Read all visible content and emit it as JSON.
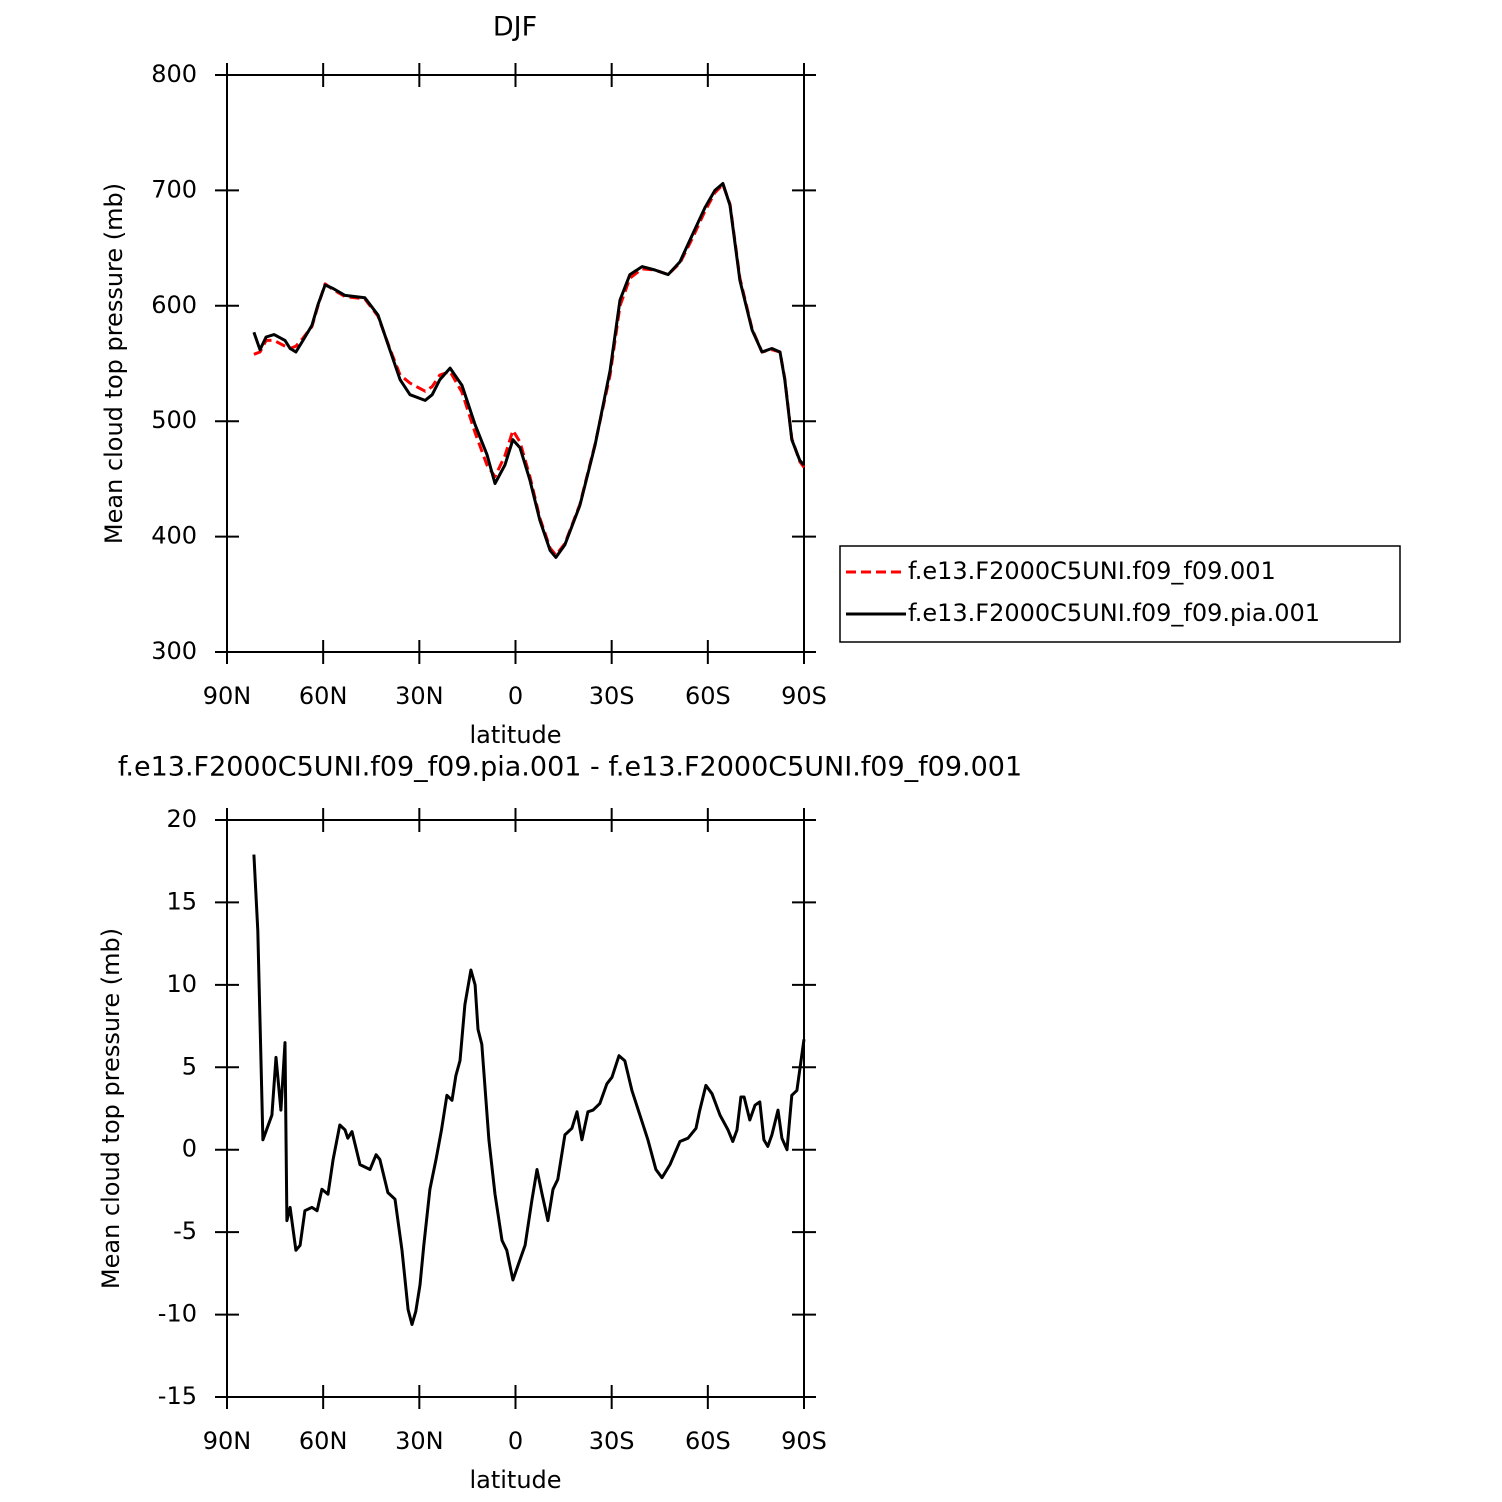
{
  "chart_data": [
    {
      "type": "line",
      "title": "DJF",
      "xlabel": "latitude",
      "ylabel": "Mean cloud top pressure (mb)",
      "xlim": [
        90,
        -90
      ],
      "xticks": [
        {
          "value": 90,
          "label": "90N"
        },
        {
          "value": 60,
          "label": "60N"
        },
        {
          "value": 30,
          "label": "30N"
        },
        0,
        {
          "value": -30,
          "label": "30S"
        },
        {
          "value": -60,
          "label": "60S"
        },
        {
          "value": -90,
          "label": "90S"
        }
      ],
      "ylim": [
        300,
        800
      ],
      "yticks": [
        300,
        400,
        500,
        600,
        700,
        800
      ],
      "legend": "right",
      "x": [
        81.6,
        79.7,
        77.8,
        75.3,
        71.9,
        70.3,
        68.5,
        66.3,
        63.5,
        61.6,
        59.4,
        56.9,
        53.2,
        47,
        42.9,
        39.2,
        36,
        32.9,
        28.2,
        26,
        23.6,
        20.4,
        16.7,
        12.6,
        8.9,
        6.4,
        3.3,
        0.8,
        -1.4,
        -4.5,
        -7.6,
        -10.8,
        -12.6,
        -15.4,
        -20.1,
        -24.8,
        -29.5,
        -32.6,
        -35.7,
        -39.5,
        -43.5,
        -47.6,
        -51.3,
        -55.1,
        -59.1,
        -62.2,
        -64.7,
        -66.9,
        -70,
        -73.8,
        -76.9,
        -80,
        -82.5,
        -84,
        -86.2,
        -88.7,
        -90
      ],
      "series": [
        {
          "name": "f.e13.F2000C5UNI.f09_f09.001",
          "color": "#ff0000",
          "dashed": true,
          "values": [
            558,
            560,
            570,
            570,
            565,
            563,
            565,
            572,
            582,
            600,
            619,
            614,
            608,
            606,
            591,
            563,
            540,
            533,
            526,
            530,
            540,
            543,
            525,
            490,
            462,
            452,
            470,
            492,
            482,
            452,
            416,
            390,
            384,
            394,
            428,
            480,
            540,
            600,
            624,
            632,
            631,
            627,
            637,
            658,
            682,
            698,
            705,
            688,
            624,
            580,
            560,
            562,
            560,
            537,
            485,
            465,
            460
          ]
        },
        {
          "name": "f.e13.F2000C5UNI.f09_f09.pia.001",
          "color": "#000000",
          "dashed": false,
          "values": [
            577,
            562,
            573,
            575,
            570,
            563,
            560,
            570,
            583,
            601,
            618,
            615,
            609,
            607,
            592,
            562,
            536,
            523,
            518,
            523,
            536,
            546,
            531,
            497,
            471,
            446,
            462,
            484,
            477,
            449,
            414,
            388,
            382,
            393,
            427,
            479,
            544,
            605,
            627,
            634,
            631,
            627,
            638,
            661,
            685,
            700,
            706,
            687,
            622,
            579,
            560,
            563,
            560,
            536,
            484,
            466,
            462
          ]
        }
      ]
    },
    {
      "type": "line",
      "title": "f.e13.F2000C5UNI.f09_f09.pia.001 - f.e13.F2000C5UNI.f09_f09.001",
      "xlabel": "latitude",
      "ylabel": "Mean cloud top pressure (mb)",
      "xlim": [
        90,
        -90
      ],
      "xticks": [
        {
          "value": 90,
          "label": "90N"
        },
        {
          "value": 60,
          "label": "60N"
        },
        {
          "value": 30,
          "label": "30N"
        },
        0,
        {
          "value": -30,
          "label": "30S"
        },
        {
          "value": -60,
          "label": "60S"
        },
        {
          "value": -90,
          "label": "90S"
        }
      ],
      "ylim": [
        -15,
        20
      ],
      "yticks": [
        -15,
        -10,
        -5,
        0,
        5,
        10,
        15,
        20
      ],
      "x": [
        81.6,
        80.4,
        78.8,
        76,
        74.7,
        73.2,
        71.9,
        71.3,
        70.3,
        68.5,
        67.2,
        65.7,
        63.5,
        61.9,
        60.4,
        58.5,
        56.9,
        54.8,
        53.2,
        52.3,
        51,
        48.5,
        45.4,
        43.5,
        42.3,
        39.8,
        37.6,
        35.4,
        33.5,
        32.3,
        31.1,
        29.8,
        28.6,
        26.7,
        24.8,
        23.1,
        21.4,
        19.8,
        18.6,
        17.3,
        15.8,
        13.9,
        12.6,
        11.7,
        10.5,
        8.3,
        6.4,
        4.2,
        2.7,
        0.8,
        -0.8,
        -3,
        -5.1,
        -6.7,
        -8.3,
        -10.1,
        -11.7,
        -13.2,
        -15.4,
        -17.6,
        -19.2,
        -20.7,
        -22.6,
        -24.2,
        -26.3,
        -28.5,
        -30.1,
        -32.3,
        -34.1,
        -36.3,
        -38.8,
        -41.3,
        -43.8,
        -45.7,
        -48.2,
        -51.3,
        -53.8,
        -56.3,
        -57.5,
        -59.4,
        -61.3,
        -63.8,
        -66.3,
        -67.8,
        -69.1,
        -70.3,
        -71.3,
        -73.1,
        -74.7,
        -76.2,
        -77.5,
        -78.7,
        -80,
        -81.9,
        -83.1,
        -84.7,
        -86.2,
        -87.8,
        -90
      ],
      "series": [
        {
          "color": "#000000",
          "dashed": false,
          "values": [
            17.9,
            13.3,
            0.6,
            2.1,
            5.6,
            2.4,
            6.5,
            -4.3,
            -3.5,
            -6.1,
            -5.8,
            -3.7,
            -3.5,
            -3.7,
            -2.4,
            -2.7,
            -0.6,
            1.5,
            1.2,
            0.7,
            1.1,
            -0.9,
            -1.2,
            -0.3,
            -0.6,
            -2.6,
            -3.0,
            -6.1,
            -9.7,
            -10.6,
            -9.8,
            -8.2,
            -5.8,
            -2.4,
            -0.6,
            1.2,
            3.3,
            3.0,
            4.5,
            5.4,
            8.8,
            10.9,
            10.0,
            7.3,
            6.4,
            0.6,
            -2.7,
            -5.5,
            -6.1,
            -7.9,
            -7.0,
            -5.8,
            -3.1,
            -1.2,
            -2.7,
            -4.3,
            -2.4,
            -1.8,
            0.9,
            1.3,
            2.3,
            0.6,
            2.3,
            2.4,
            2.8,
            4.0,
            4.4,
            5.7,
            5.4,
            3.6,
            2.1,
            0.6,
            -1.2,
            -1.7,
            -0.9,
            0.5,
            0.7,
            1.3,
            2.4,
            3.9,
            3.4,
            2.1,
            1.2,
            0.5,
            1.2,
            3.2,
            3.2,
            1.8,
            2.7,
            2.9,
            0.6,
            0.2,
            0.9,
            2.4,
            0.7,
            0.0,
            3.3,
            3.6,
            6.7
          ]
        }
      ]
    }
  ]
}
